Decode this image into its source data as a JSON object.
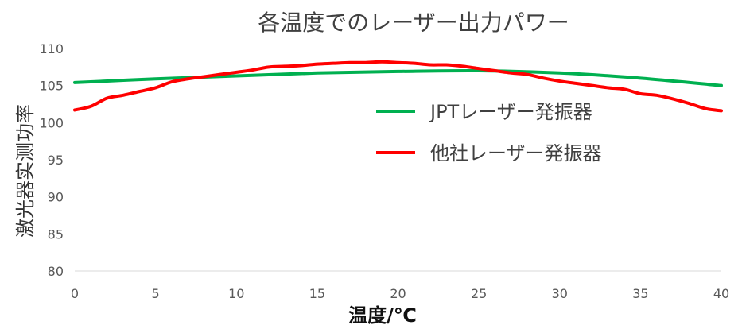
{
  "chart_data": {
    "type": "line",
    "title": "各温度でのレーザー出力パワー",
    "xlabel": "温度/℃",
    "ylabel": "激光器实测功率",
    "xlim": [
      0,
      40
    ],
    "ylim": [
      80,
      110
    ],
    "xticks": [
      0,
      5,
      10,
      15,
      20,
      25,
      30,
      35,
      40
    ],
    "yticks": [
      80,
      85,
      90,
      95,
      100,
      105,
      110
    ],
    "grid": false,
    "legend_position": "right",
    "series": [
      {
        "name": "JPTレーザー発振器",
        "color": "#00b050",
        "x": [
          0,
          5,
          10,
          15,
          20,
          25,
          30,
          35,
          40
        ],
        "y": [
          105.4,
          105.9,
          106.3,
          106.7,
          106.9,
          107.0,
          106.7,
          106.0,
          105.0
        ]
      },
      {
        "name": "他社レーザー発振器",
        "color": "#ff0000",
        "x": [
          0,
          1,
          2,
          3,
          4,
          5,
          6,
          7,
          8,
          9,
          10,
          11,
          12,
          13,
          14,
          15,
          16,
          17,
          18,
          19,
          20,
          21,
          22,
          23,
          24,
          25,
          26,
          27,
          28,
          29,
          30,
          31,
          32,
          33,
          34,
          35,
          36,
          37,
          38,
          39,
          40
        ],
        "y": [
          101.7,
          102.2,
          103.3,
          103.7,
          104.2,
          104.7,
          105.5,
          105.9,
          106.2,
          106.5,
          106.8,
          107.1,
          107.5,
          107.6,
          107.7,
          107.9,
          108.0,
          108.1,
          108.1,
          108.2,
          108.1,
          108.0,
          107.8,
          107.8,
          107.6,
          107.3,
          107.0,
          106.7,
          106.5,
          106.0,
          105.6,
          105.3,
          105.0,
          104.7,
          104.5,
          103.9,
          103.7,
          103.2,
          102.6,
          101.9,
          101.6
        ]
      }
    ]
  }
}
